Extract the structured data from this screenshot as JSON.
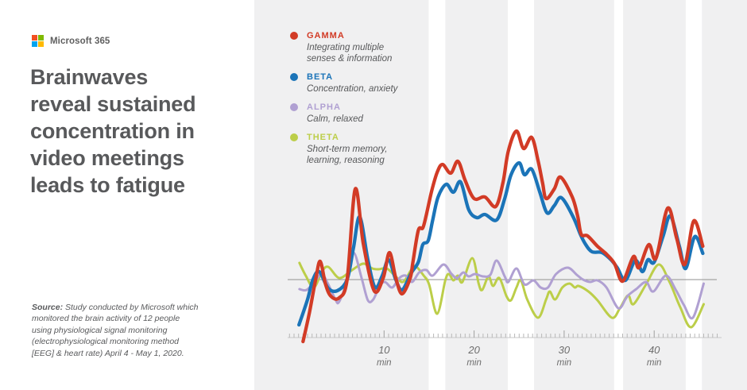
{
  "brand": {
    "name": "Microsoft 365",
    "logo_colors": {
      "top_left": "#f25022",
      "top_right": "#7fba00",
      "bottom_left": "#00a4ef",
      "bottom_right": "#ffb900"
    }
  },
  "headline": "Brainwaves\nreveal sustained\nconcentration in\nvideo meetings\nleads to fatigue",
  "source": {
    "label": "Source:",
    "text": " Study conducted by Microsoft which\nmonitored the brain activity of 12 people\nusing physiological signal monitoring\n(electrophysiological monitoring method\n[EEG] & heart rate) April 4 - May 1, 2020."
  },
  "legend": [
    {
      "name": "GAMMA",
      "desc": "Integrating multiple\nsenses & information",
      "color": "#d23b26"
    },
    {
      "name": "BETA",
      "desc": "Concentration, anxiety",
      "color": "#1b74b8"
    },
    {
      "name": "ALPHA",
      "desc": "Calm, relaxed",
      "color": "#b0a0d2"
    },
    {
      "name": "THETA",
      "desc": "Short-term memory,\nlearning, reasoning",
      "color": "#bcce49"
    }
  ],
  "chart_data": {
    "type": "line",
    "title": "",
    "x_unit": "min",
    "x_axis_ticks": [
      10,
      20,
      30,
      40
    ],
    "x_axis_tick_suffix": "min",
    "x_range": [
      0,
      47.5
    ],
    "y_units": "relative brainwave amplitude (unlabeled axis, px above baseline)",
    "baseline_value": 0,
    "grid": false,
    "legend_position": "top-left",
    "background_stripes_min": [
      [
        14.95,
        16.8
      ],
      [
        23.75,
        26.65
      ],
      [
        35.55,
        36.55
      ],
      [
        43.5,
        45.3
      ]
    ],
    "series": [
      {
        "name": "GAMMA",
        "points": [
          [
            1,
            -78
          ],
          [
            1.7,
            -42
          ],
          [
            2.4,
            0
          ],
          [
            2.9,
            23
          ],
          [
            3.5,
            -6
          ],
          [
            4.1,
            -21
          ],
          [
            5,
            -23
          ],
          [
            5.9,
            0
          ],
          [
            6.8,
            114
          ],
          [
            7.7,
            45
          ],
          [
            8.9,
            -14
          ],
          [
            9.9,
            2
          ],
          [
            10.6,
            34
          ],
          [
            11.3,
            2
          ],
          [
            12,
            -18
          ],
          [
            12.9,
            2
          ],
          [
            13.2,
            22
          ],
          [
            13.8,
            62
          ],
          [
            14.3,
            65
          ],
          [
            14.7,
            82
          ],
          [
            15.3,
            112
          ],
          [
            15.9,
            135
          ],
          [
            16.5,
            145
          ],
          [
            17.4,
            134
          ],
          [
            18.2,
            149
          ],
          [
            19,
            125
          ],
          [
            20,
            102
          ],
          [
            21.2,
            104
          ],
          [
            22.4,
            92
          ],
          [
            23.2,
            122
          ],
          [
            23.8,
            162
          ],
          [
            24.7,
            187
          ],
          [
            25.5,
            165
          ],
          [
            26.4,
            179
          ],
          [
            27.1,
            150
          ],
          [
            27.6,
            122
          ],
          [
            28,
            102
          ],
          [
            28.9,
            114
          ],
          [
            29.6,
            129
          ],
          [
            30.9,
            104
          ],
          [
            31.5,
            80
          ],
          [
            31.9,
            57
          ],
          [
            32.6,
            55
          ],
          [
            33.7,
            42
          ],
          [
            34.7,
            32
          ],
          [
            35.6,
            20
          ],
          [
            36.5,
            -2
          ],
          [
            37.7,
            29
          ],
          [
            38.3,
            15
          ],
          [
            39.4,
            44
          ],
          [
            40.2,
            27
          ],
          [
            41.5,
            90
          ],
          [
            42.5,
            52
          ],
          [
            43.4,
            19
          ],
          [
            44.4,
            74
          ],
          [
            45.4,
            42
          ]
        ]
      },
      {
        "name": "BETA",
        "points": [
          [
            0.55,
            -57
          ],
          [
            1.5,
            -25
          ],
          [
            2.1,
            0
          ],
          [
            2.8,
            10
          ],
          [
            3.8,
            -11
          ],
          [
            4.8,
            -14
          ],
          [
            5.9,
            0
          ],
          [
            6.6,
            40
          ],
          [
            7.3,
            79
          ],
          [
            8.2,
            25
          ],
          [
            9,
            -10
          ],
          [
            9.8,
            5
          ],
          [
            10.5,
            25
          ],
          [
            11.3,
            0
          ],
          [
            12,
            -13
          ],
          [
            13,
            8
          ],
          [
            13.8,
            22
          ],
          [
            14.3,
            44
          ],
          [
            14.9,
            49
          ],
          [
            15.4,
            75
          ],
          [
            16,
            104
          ],
          [
            16.9,
            120
          ],
          [
            17.7,
            110
          ],
          [
            18.5,
            123
          ],
          [
            19.4,
            88
          ],
          [
            20.3,
            78
          ],
          [
            21.2,
            82
          ],
          [
            22.5,
            75
          ],
          [
            23.4,
            102
          ],
          [
            24.1,
            132
          ],
          [
            25,
            147
          ],
          [
            25.6,
            132
          ],
          [
            26.4,
            139
          ],
          [
            27.3,
            110
          ],
          [
            28.1,
            84
          ],
          [
            28.9,
            93
          ],
          [
            29.7,
            103
          ],
          [
            31,
            79
          ],
          [
            31.8,
            57
          ],
          [
            32.4,
            44
          ],
          [
            33.1,
            35
          ],
          [
            34.2,
            34
          ],
          [
            35.2,
            25
          ],
          [
            35.9,
            15
          ],
          [
            36.8,
            -1
          ],
          [
            37.9,
            24
          ],
          [
            38.7,
            10
          ],
          [
            39.3,
            25
          ],
          [
            40,
            22
          ],
          [
            41,
            55
          ],
          [
            41.8,
            80
          ],
          [
            42.8,
            42
          ],
          [
            43.5,
            14
          ],
          [
            44.5,
            54
          ],
          [
            45.4,
            33
          ]
        ]
      },
      {
        "name": "ALPHA",
        "points": [
          [
            0.6,
            -12
          ],
          [
            1.4,
            -13
          ],
          [
            2.4,
            -1
          ],
          [
            3.1,
            7
          ],
          [
            3.8,
            -6
          ],
          [
            4.6,
            -25
          ],
          [
            5,
            -28
          ],
          [
            5.9,
            -1
          ],
          [
            6.6,
            34
          ],
          [
            7.5,
            2
          ],
          [
            8.2,
            -26
          ],
          [
            8.8,
            -25
          ],
          [
            9.5,
            -8
          ],
          [
            10.1,
            -3
          ],
          [
            10.9,
            -10
          ],
          [
            11.7,
            2
          ],
          [
            12.4,
            5
          ],
          [
            13.1,
            -3
          ],
          [
            13.9,
            9
          ],
          [
            14.7,
            12
          ],
          [
            15.4,
            5
          ],
          [
            16.6,
            19
          ],
          [
            17.5,
            7
          ],
          [
            18.1,
            2
          ],
          [
            18.8,
            9
          ],
          [
            19.4,
            4
          ],
          [
            20.1,
            7
          ],
          [
            21,
            4
          ],
          [
            21.8,
            6
          ],
          [
            22.5,
            24
          ],
          [
            23.4,
            4
          ],
          [
            23.8,
            -3
          ],
          [
            24.7,
            14
          ],
          [
            25.6,
            -6
          ],
          [
            26.6,
            -1
          ],
          [
            27.4,
            -10
          ],
          [
            28.2,
            -10
          ],
          [
            29.1,
            7
          ],
          [
            30.4,
            15
          ],
          [
            31.4,
            6
          ],
          [
            32.1,
            0
          ],
          [
            32.9,
            -3
          ],
          [
            33.7,
            -1
          ],
          [
            34.7,
            -10
          ],
          [
            36,
            -36
          ],
          [
            36.8,
            -25
          ],
          [
            37.1,
            -20
          ],
          [
            38,
            -12
          ],
          [
            39.1,
            -3
          ],
          [
            39.9,
            -15
          ],
          [
            41.3,
            5
          ],
          [
            42.4,
            -13
          ],
          [
            43.3,
            -32
          ],
          [
            44.3,
            -48
          ],
          [
            45.5,
            -5
          ]
        ]
      },
      {
        "name": "THETA",
        "points": [
          [
            0.6,
            21
          ],
          [
            1.3,
            5
          ],
          [
            2.2,
            -10
          ],
          [
            3.1,
            10
          ],
          [
            3.8,
            16
          ],
          [
            5,
            2
          ],
          [
            6.2,
            10
          ],
          [
            7.1,
            17
          ],
          [
            7.8,
            20
          ],
          [
            8.7,
            14
          ],
          [
            9.4,
            13
          ],
          [
            10.3,
            14
          ],
          [
            11.2,
            5
          ],
          [
            12.1,
            -3
          ],
          [
            13,
            12
          ],
          [
            13.5,
            17
          ],
          [
            14.4,
            5
          ],
          [
            15,
            -6
          ],
          [
            15.9,
            -43
          ],
          [
            16.8,
            -1
          ],
          [
            17.2,
            7
          ],
          [
            17.7,
            -1
          ],
          [
            18.2,
            5
          ],
          [
            18.7,
            -3
          ],
          [
            19.8,
            27
          ],
          [
            20.5,
            -5
          ],
          [
            20.9,
            -13
          ],
          [
            21.6,
            4
          ],
          [
            22.1,
            -8
          ],
          [
            22.8,
            2
          ],
          [
            23.6,
            -21
          ],
          [
            24.1,
            -26
          ],
          [
            24.7,
            -10
          ],
          [
            25.2,
            -1
          ],
          [
            25.9,
            -25
          ],
          [
            27.1,
            -48
          ],
          [
            28,
            -25
          ],
          [
            28.4,
            -15
          ],
          [
            29,
            -25
          ],
          [
            29.8,
            -10
          ],
          [
            30.6,
            -5
          ],
          [
            31.2,
            -10
          ],
          [
            31.6,
            -8
          ],
          [
            32.7,
            -15
          ],
          [
            33.7,
            -26
          ],
          [
            35.3,
            -48
          ],
          [
            36.2,
            -36
          ],
          [
            37.1,
            -20
          ],
          [
            37.7,
            -31
          ],
          [
            39.1,
            -6
          ],
          [
            40.5,
            19
          ],
          [
            41.7,
            -3
          ],
          [
            42.9,
            -35
          ],
          [
            44.1,
            -60
          ],
          [
            45.5,
            -31
          ]
        ]
      }
    ]
  }
}
